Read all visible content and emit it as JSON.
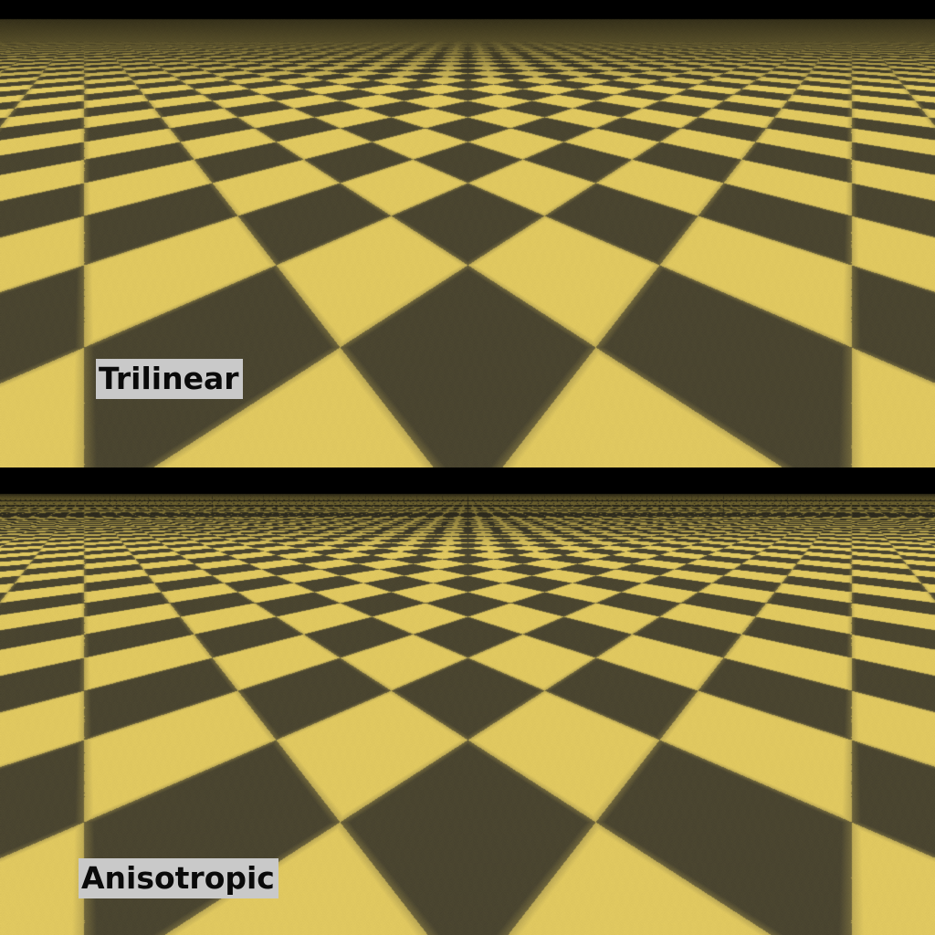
{
  "panels": [
    {
      "label": "Trilinear",
      "filtering": "trilinear",
      "tile_colors": {
        "light": "#e0c860",
        "dark": "#4a4530"
      },
      "sky_color": "#000000"
    },
    {
      "label": "Anisotropic",
      "filtering": "anisotropic",
      "tile_colors": {
        "light": "#e0c860",
        "dark": "#4a4530"
      },
      "sky_color": "#000000"
    }
  ],
  "label_style": {
    "background": "#c9c9c9",
    "text_color": "#0a0a0a"
  }
}
